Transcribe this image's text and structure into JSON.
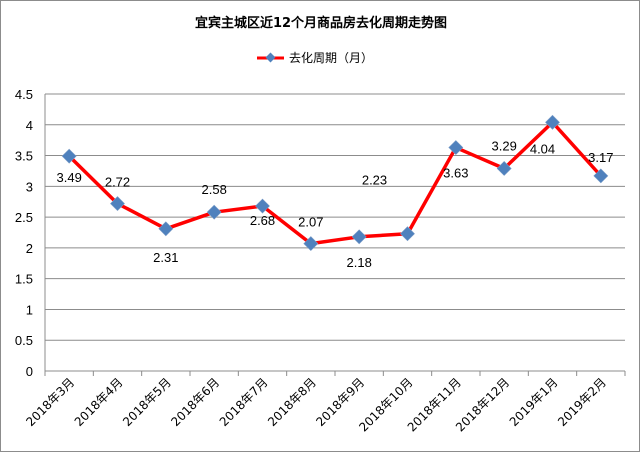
{
  "chart_data": {
    "type": "line",
    "title": "宜宾主城区近12个月商品房去化周期走势图",
    "categories": [
      "2018年3月",
      "2018年4月",
      "2018年5月",
      "2018年6月",
      "2018年7月",
      "2018年8月",
      "2018年9月",
      "2018年10月",
      "2018年11月",
      "2018年12月",
      "2019年1月",
      "2019年2月"
    ],
    "series": [
      {
        "name": "去化周期（月）",
        "values": [
          3.49,
          2.72,
          2.31,
          2.58,
          2.68,
          2.07,
          2.18,
          2.23,
          3.63,
          3.29,
          4.04,
          3.17
        ],
        "labels": [
          "3.49",
          "2.72",
          "2.31",
          "2.58",
          "2.68",
          "2.07",
          "2.18",
          "2.23",
          "3.63",
          "3.29",
          "4.04",
          "3.17"
        ],
        "line_color": "#ff0000",
        "marker_color": "#4f81bd"
      }
    ],
    "ylim": [
      0,
      4.5
    ],
    "yticks": [
      "0",
      "0.5",
      "1",
      "1.5",
      "2",
      "2.5",
      "3",
      "3.5",
      "4",
      "4.5"
    ],
    "grid": true,
    "legend": "top-center"
  }
}
